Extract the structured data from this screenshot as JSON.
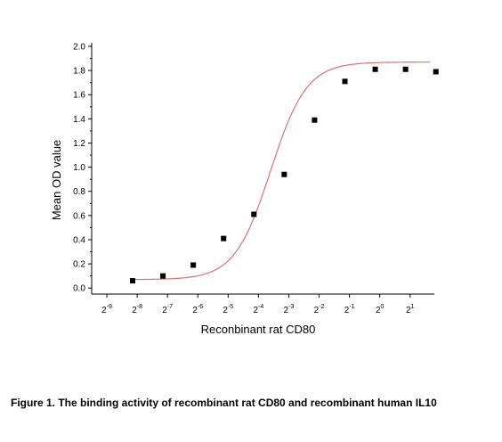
{
  "chart_data": {
    "type": "scatter",
    "title": "",
    "xlabel": "Reconbinant rat CD80",
    "ylabel": "Mean OD value",
    "x_tick_base": "2",
    "x_tick_exponents": [
      "-9",
      "-8",
      "-7",
      "-6",
      "-5",
      "-4",
      "-3",
      "-2",
      "-1",
      "0",
      "1"
    ],
    "xlim_log2": [
      -9.5,
      1.8
    ],
    "ylim": [
      -0.05,
      2.0
    ],
    "y_ticks": [
      "0.0",
      "0.2",
      "0.4",
      "0.6",
      "0.8",
      "1.0",
      "1.2",
      "1.4",
      "1.6",
      "1.8",
      "2.0"
    ],
    "grid": false,
    "legend": "none",
    "series": [
      {
        "kind": "points",
        "marker": "square",
        "color": "#000000",
        "x_log2": [
          -8.15,
          -7.15,
          -6.15,
          -5.15,
          -4.15,
          -3.15,
          -2.15,
          -1.15,
          -0.15,
          0.85,
          1.85
        ],
        "y": [
          0.06,
          0.1,
          0.19,
          0.41,
          0.61,
          0.94,
          1.39,
          1.71,
          1.81,
          1.81,
          1.79
        ]
      },
      {
        "kind": "fit",
        "model": "four-parameter logistic",
        "color": "#e07070",
        "bottom": 0.07,
        "top": 1.87,
        "ec50_log2": -3.6,
        "hill_log2": 0.95,
        "x_range_log2": [
          -8.15,
          1.65
        ]
      }
    ]
  },
  "caption": {
    "text": "Figure 1. The binding activity of recombinant rat CD80 and recombinant human IL10"
  }
}
